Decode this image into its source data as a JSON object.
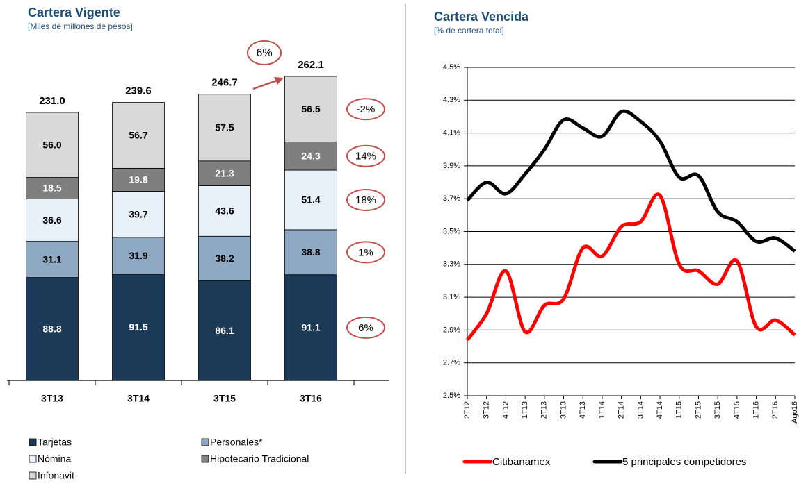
{
  "chart_data": [
    {
      "type": "stacked_bar",
      "title": "Cartera Vigente",
      "subtitle": "[Miles de millones de pesos]",
      "categories": [
        "3T13",
        "3T14",
        "3T15",
        "3T16"
      ],
      "series": [
        {
          "name": "Tarjetas",
          "color": "#1b3a57",
          "values": [
            88.8,
            91.5,
            86.1,
            91.1
          ],
          "growth": "6%"
        },
        {
          "name": "Personales*",
          "color": "#8ea9c1",
          "values": [
            31.1,
            31.9,
            38.2,
            38.8
          ],
          "growth": "1%"
        },
        {
          "name": "Nómina",
          "color": "#e8f0fa",
          "values": [
            36.6,
            39.7,
            43.6,
            51.4
          ],
          "growth": "18%"
        },
        {
          "name": "Hipotecario Tradicional",
          "color": "#7f7f7f",
          "values": [
            18.5,
            19.8,
            21.3,
            24.3
          ],
          "growth": "14%"
        },
        {
          "name": "Infonavit",
          "color": "#d9d9d9",
          "values": [
            56,
            56.7,
            57.5,
            56.5
          ],
          "value_labels": [
            "56.0",
            "56.7",
            "57.5",
            "56.5"
          ],
          "growth": "-2%"
        }
      ],
      "totals": [
        231,
        239.6,
        246.7,
        262.1
      ],
      "total_labels": [
        "231.0",
        "239.6",
        "246.7",
        "262.1"
      ],
      "total_growth": "6%"
    },
    {
      "type": "line",
      "title": "Cartera Vencida",
      "subtitle": "[% de cartera total]",
      "categories": [
        "2T12",
        "3T12",
        "4T12",
        "1T13",
        "2T13",
        "3T13",
        "4T13",
        "1T14",
        "2T14",
        "3T14",
        "4T14",
        "1T15",
        "2T15",
        "3T15",
        "4T15",
        "1T16",
        "2T16",
        "Ago16"
      ],
      "ylim": [
        2.5,
        4.5
      ],
      "yticks": [
        {
          "value": 2.5,
          "label": "2.5%"
        },
        {
          "value": 2.7,
          "label": "2.7%"
        },
        {
          "value": 2.9,
          "label": "2.9%"
        },
        {
          "value": 3.1,
          "label": "3.1%"
        },
        {
          "value": 3.3,
          "label": "3.3%"
        },
        {
          "value": 3.5,
          "label": "3.5%"
        },
        {
          "value": 3.7,
          "label": "3.7%"
        },
        {
          "value": 3.9,
          "label": "3.9%"
        },
        {
          "value": 4.1,
          "label": "4.1%"
        },
        {
          "value": 4.3,
          "label": "4.3%"
        },
        {
          "value": 4.5,
          "label": "4.5%"
        }
      ],
      "grid": true,
      "series": [
        {
          "name": "Citibanamex",
          "color": "#ff0000",
          "values": [
            2.84,
            3.0,
            3.26,
            2.89,
            3.05,
            3.09,
            3.4,
            3.35,
            3.53,
            3.56,
            3.72,
            3.3,
            3.26,
            3.18,
            3.32,
            2.92,
            2.96,
            2.87
          ]
        },
        {
          "name": "5 principales competidores",
          "color": "#000000",
          "values": [
            3.69,
            3.8,
            3.73,
            3.85,
            4.0,
            4.18,
            4.13,
            4.08,
            4.23,
            4.17,
            4.05,
            3.83,
            3.84,
            3.62,
            3.56,
            3.44,
            3.46,
            3.38
          ]
        }
      ]
    }
  ]
}
